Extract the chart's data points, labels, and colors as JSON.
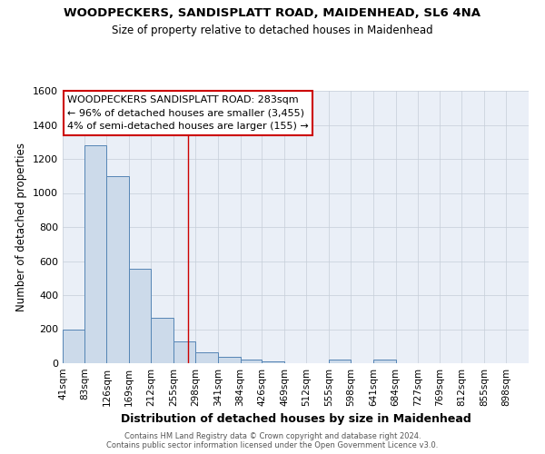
{
  "title1": "WOODPECKERS, SANDISPLATT ROAD, MAIDENHEAD, SL6 4NA",
  "title2": "Size of property relative to detached houses in Maidenhead",
  "xlabel": "Distribution of detached houses by size in Maidenhead",
  "ylabel": "Number of detached properties",
  "bin_labels": [
    "41sqm",
    "83sqm",
    "126sqm",
    "169sqm",
    "212sqm",
    "255sqm",
    "298sqm",
    "341sqm",
    "384sqm",
    "426sqm",
    "469sqm",
    "512sqm",
    "555sqm",
    "598sqm",
    "641sqm",
    "684sqm",
    "727sqm",
    "769sqm",
    "812sqm",
    "855sqm",
    "898sqm"
  ],
  "bin_edges": [
    41,
    83,
    126,
    169,
    212,
    255,
    298,
    341,
    384,
    426,
    469,
    512,
    555,
    598,
    641,
    684,
    727,
    769,
    812,
    855,
    898,
    941
  ],
  "bar_heights": [
    200,
    1280,
    1100,
    555,
    265,
    130,
    65,
    35,
    20,
    10,
    0,
    0,
    20,
    0,
    20,
    0,
    0,
    0,
    0,
    0,
    0
  ],
  "bar_color": "#ccdaea",
  "bar_edge_color": "#5585b5",
  "red_line_x": 283,
  "ylim": [
    0,
    1600
  ],
  "yticks": [
    0,
    200,
    400,
    600,
    800,
    1000,
    1200,
    1400,
    1600
  ],
  "annotation_line1": "WOODPECKERS SANDISPLATT ROAD: 283sqm",
  "annotation_line2": "← 96% of detached houses are smaller (3,455)",
  "annotation_line3": "4% of semi-detached houses are larger (155) →",
  "annotation_box_color": "#ffffff",
  "annotation_box_edge": "#cc0000",
  "footer1": "Contains HM Land Registry data © Crown copyright and database right 2024.",
  "footer2": "Contains public sector information licensed under the Open Government Licence v3.0.",
  "background_color": "#eaeff7",
  "grid_color": "#c5cdd8",
  "plot_bg": "#f5f7fb"
}
